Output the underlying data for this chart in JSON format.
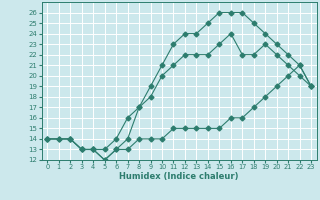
{
  "xlabel": "Humidex (Indice chaleur)",
  "bg_color": "#cce8ec",
  "grid_color": "#ffffff",
  "line_color": "#2d7d6e",
  "xlim": [
    -0.5,
    23.5
  ],
  "ylim": [
    12,
    27
  ],
  "xticks": [
    0,
    1,
    2,
    3,
    4,
    5,
    6,
    7,
    8,
    9,
    10,
    11,
    12,
    13,
    14,
    15,
    16,
    17,
    18,
    19,
    20,
    21,
    22,
    23
  ],
  "yticks": [
    12,
    13,
    14,
    15,
    16,
    17,
    18,
    19,
    20,
    21,
    22,
    23,
    24,
    25,
    26
  ],
  "line1_x": [
    0,
    1,
    2,
    3,
    4,
    5,
    6,
    7,
    8,
    9,
    10,
    11,
    12,
    13,
    14,
    15,
    16,
    17,
    18,
    19,
    20,
    21,
    22,
    23
  ],
  "line1_y": [
    14,
    14,
    14,
    13,
    13,
    12,
    13,
    13,
    14,
    14,
    14,
    15,
    15,
    15,
    15,
    15,
    16,
    16,
    17,
    18,
    19,
    20,
    21,
    19
  ],
  "line2_x": [
    0,
    1,
    2,
    3,
    4,
    5,
    6,
    7,
    8,
    9,
    10,
    11,
    12,
    13,
    14,
    15,
    16,
    17,
    18,
    19,
    20,
    21,
    22,
    23
  ],
  "line2_y": [
    14,
    14,
    14,
    13,
    13,
    13,
    14,
    16,
    17,
    18,
    20,
    21,
    22,
    22,
    22,
    23,
    24,
    22,
    22,
    23,
    22,
    21,
    20,
    19
  ],
  "line3_x": [
    0,
    2,
    3,
    4,
    5,
    6,
    7,
    8,
    9,
    10,
    11,
    12,
    13,
    14,
    15,
    16,
    17,
    18,
    19,
    20,
    21,
    22,
    23
  ],
  "line3_y": [
    14,
    14,
    13,
    13,
    12,
    13,
    14,
    17,
    19,
    21,
    23,
    24,
    24,
    25,
    26,
    26,
    26,
    25,
    24,
    23,
    22,
    21,
    19
  ]
}
